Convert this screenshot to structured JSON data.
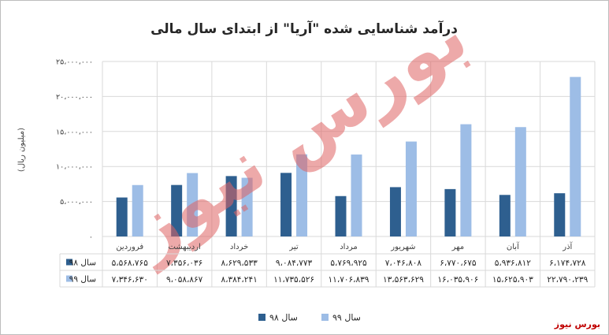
{
  "chart_data": {
    "type": "bar",
    "title": "درآمد شناسایی شده \"آریا\" از ابتدای سال مالی",
    "ylabel": "(میلیون ریال)",
    "ylim": [
      0,
      25000000
    ],
    "yticks": [
      "۰",
      "۵،۰۰۰،۰۰۰",
      "۱۰،۰۰۰،۰۰۰",
      "۱۵،۰۰۰،۰۰۰",
      "۲۰،۰۰۰،۰۰۰",
      "۲۵،۰۰۰،۰۰۰"
    ],
    "grid": true,
    "legend_position": "bottom",
    "categories": [
      "فروردین",
      "اردیبهشت",
      "خرداد",
      "تیر",
      "مرداد",
      "شهریور",
      "مهر",
      "آبان",
      "آذر"
    ],
    "series": [
      {
        "name": "سال ۹۸",
        "color": "#2e5f8f",
        "values": [
          5568765,
          7356036,
          8629533,
          9084773,
          5769925,
          7046808,
          6770675,
          5936812,
          6174728
        ],
        "labels": [
          "۵،۵۶۸،۷۶۵",
          "۷،۳۵۶،۰۳۶",
          "۸،۶۲۹،۵۳۳",
          "۹،۰۸۴،۷۷۳",
          "۵،۷۶۹،۹۲۵",
          "۷،۰۴۶،۸۰۸",
          "۶،۷۷۰،۶۷۵",
          "۵،۹۳۶،۸۱۲",
          "۶،۱۷۴،۷۲۸"
        ]
      },
      {
        "name": "سال ۹۹",
        "color": "#9dbde6",
        "values": [
          7346630,
          9058867,
          8384241,
          11735526,
          11706839,
          13563629,
          16035906,
          15625903,
          22790239
        ],
        "labels": [
          "۷،۳۴۶،۶۳۰",
          "۹،۰۵۸،۸۶۷",
          "۸،۳۸۴،۲۴۱",
          "۱۱،۷۳۵،۵۲۶",
          "۱۱،۷۰۶،۸۳۹",
          "۱۳،۵۶۳،۶۲۹",
          "۱۶،۰۳۵،۹۰۶",
          "۱۵،۶۲۵،۹۰۳",
          "۲۲،۷۹۰،۲۳۹"
        ]
      }
    ]
  },
  "watermark": "بورس نیوز",
  "brand": "بورس نیوز"
}
